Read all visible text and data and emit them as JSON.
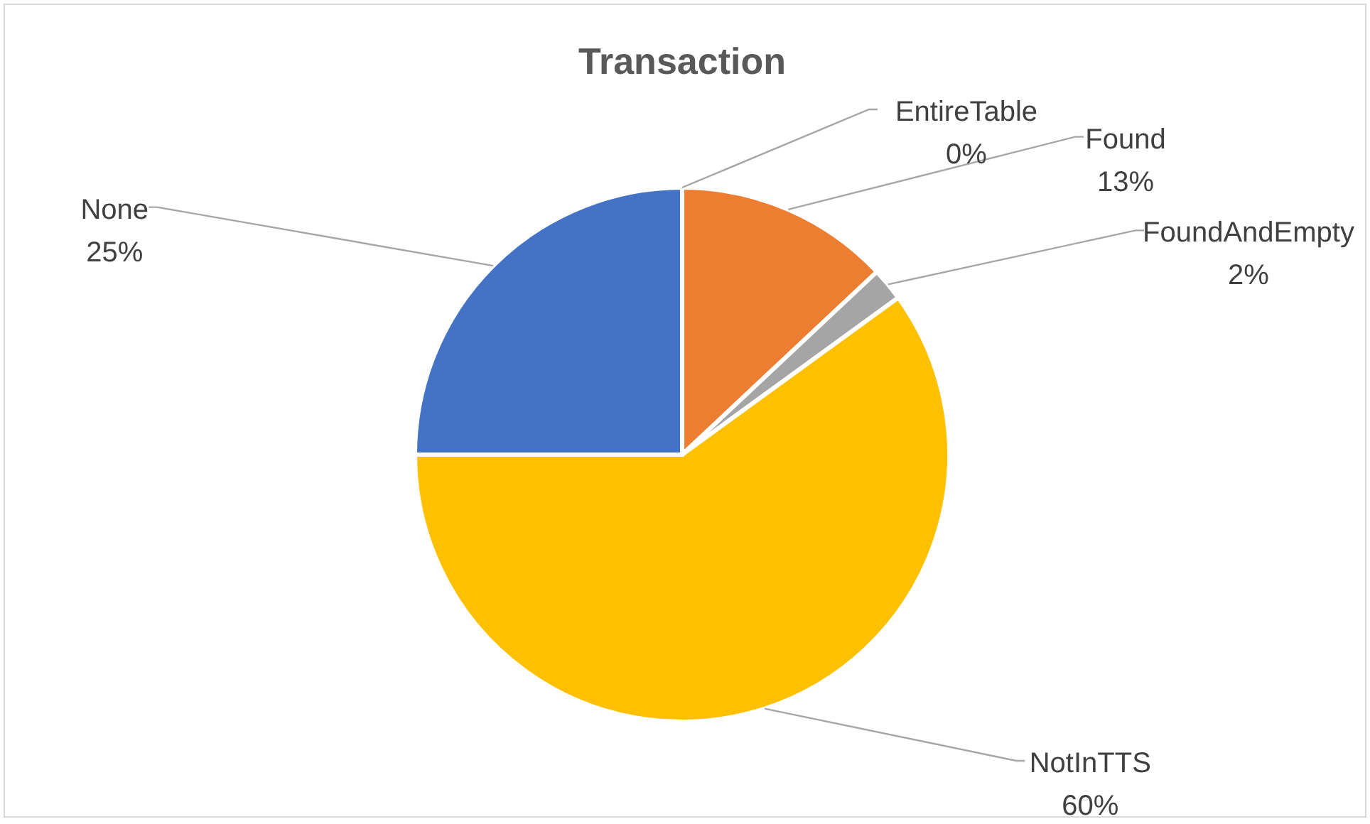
{
  "chart_data": {
    "type": "pie",
    "title": "Transaction",
    "categories": [
      "EntireTable",
      "Found",
      "FoundAndEmpty",
      "NotInTTS",
      "None"
    ],
    "values": [
      0,
      13,
      2,
      60,
      25
    ],
    "colors": [
      "#4472c4",
      "#ed7d31",
      "#a5a5a5",
      "#ffc000",
      "#4472c4"
    ],
    "value_labels": [
      "0%",
      "13%",
      "2%",
      "60%",
      "25%"
    ]
  }
}
